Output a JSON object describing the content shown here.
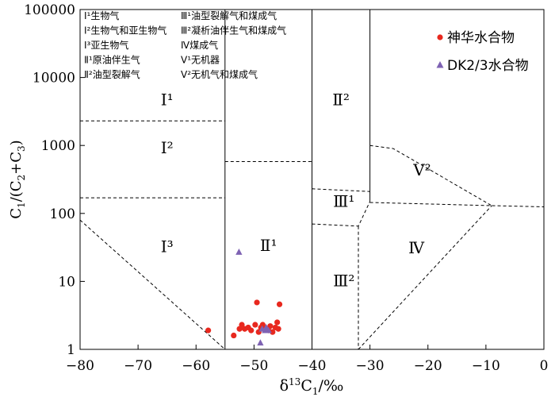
{
  "chart_data": {
    "type": "scatter",
    "xlabel": "δ13C1/‰",
    "ylabel": "C1/(C2+C3)",
    "xlim": [
      -80,
      0
    ],
    "ylim": [
      1,
      100000
    ],
    "yscale": "log",
    "xticks": [
      "−80",
      "−70",
      "−60",
      "−50",
      "−40",
      "−30",
      "−20",
      "−10",
      "0"
    ],
    "yticks": [
      "1",
      "10",
      "100",
      "1000",
      "10000",
      "100000"
    ],
    "grid": false,
    "legend_position": "top-right",
    "series": [
      {
        "name": "神华水合物",
        "marker": "circle",
        "color": "#e8281e",
        "points": [
          [
            -57.9,
            1.9
          ],
          [
            -53.5,
            1.6
          ],
          [
            -52.5,
            2.0
          ],
          [
            -52.1,
            2.3
          ],
          [
            -51.6,
            2.0
          ],
          [
            -51.0,
            2.1
          ],
          [
            -50.5,
            1.9
          ],
          [
            -49.8,
            2.3
          ],
          [
            -49.5,
            4.9
          ],
          [
            -49.2,
            1.8
          ],
          [
            -48.5,
            2.3
          ],
          [
            -48.2,
            2.0
          ],
          [
            -47.5,
            1.9
          ],
          [
            -46.8,
            1.8
          ],
          [
            -46.3,
            2.1
          ],
          [
            -46.0,
            2.5
          ],
          [
            -45.8,
            2.0
          ],
          [
            -45.6,
            4.6
          ],
          [
            -47.2,
            2.2
          ],
          [
            -48.8,
            2.1
          ]
        ]
      },
      {
        "name": "DK2/3水合物",
        "marker": "triangle",
        "color": "#7e62b3",
        "points": [
          [
            -52.6,
            27
          ],
          [
            -48.9,
            1.25
          ],
          [
            -48.6,
            2.0
          ],
          [
            -48.1,
            1.9
          ],
          [
            -47.9,
            2.1
          ],
          [
            -47.5,
            1.9
          ]
        ]
      }
    ],
    "region_labels": [
      {
        "text": "Ⅰ¹",
        "x": -65,
        "y": 3900
      },
      {
        "text": "Ⅰ²",
        "x": -65,
        "y": 770
      },
      {
        "text": "Ⅰ³",
        "x": -65,
        "y": 27
      },
      {
        "text": "Ⅱ¹",
        "x": -47.5,
        "y": 28
      },
      {
        "text": "Ⅱ²",
        "x": -35,
        "y": 3900
      },
      {
        "text": "Ⅲ¹",
        "x": -34.5,
        "y": 125
      },
      {
        "text": "Ⅲ²",
        "x": -34.5,
        "y": 8.5
      },
      {
        "text": "Ⅳ",
        "x": -22,
        "y": 26
      },
      {
        "text": "Ⅴ²",
        "x": -21,
        "y": 360
      }
    ],
    "key_left": [
      "Ⅰ¹生物气",
      "Ⅰ²生物气和亚生物气",
      "Ⅰ³亚生物气",
      "Ⅱ¹原油伴生气",
      "Ⅱ²油型裂解气"
    ],
    "key_right": [
      "Ⅲ¹油型裂解气和煤成气",
      "Ⅲ²凝析油伴生气和煤成气",
      "Ⅳ煤成气",
      "Ⅴ¹无机器",
      "Ⅴ²无机气和煤成气"
    ]
  }
}
